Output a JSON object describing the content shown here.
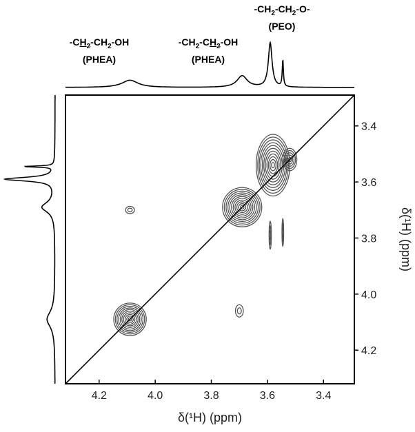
{
  "chart_data": {
    "type": "2d-nmr-contour",
    "xlabel": "δ(¹H)  (ppm)",
    "ylabel": "δ(¹H)  (ppm)",
    "xlim": [
      4.32,
      3.29
    ],
    "ylim": [
      3.29,
      4.32
    ],
    "x_ticks": [
      "4.2",
      "4.0",
      "3.8",
      "3.6",
      "3.4"
    ],
    "y_ticks": [
      "3.4",
      "3.6",
      "3.8",
      "4.0",
      "4.2"
    ],
    "x_tick_values": [
      4.2,
      4.0,
      3.8,
      3.6,
      3.4
    ],
    "y_tick_values": [
      3.4,
      3.6,
      3.8,
      4.0,
      4.2
    ],
    "diagonal": true,
    "projection_peaks": [
      {
        "ppm": 4.09,
        "height": 0.15,
        "width": 0.035
      },
      {
        "ppm": 3.69,
        "height": 0.24,
        "width": 0.022
      },
      {
        "ppm": 3.59,
        "height": 0.92,
        "width": 0.008
      },
      {
        "ppm": 3.545,
        "height": 0.55,
        "width": 0.0025
      }
    ],
    "contour_spots": [
      {
        "x": 4.09,
        "y": 4.09,
        "rx": 0.058,
        "ry": 0.058,
        "levels": 10
      },
      {
        "x": 3.69,
        "y": 3.69,
        "rx": 0.07,
        "ry": 0.07,
        "levels": 11
      },
      {
        "x": 3.58,
        "y": 3.54,
        "rx": 0.06,
        "ry": 0.11,
        "levels": 11
      },
      {
        "x": 3.52,
        "y": 3.52,
        "rx": 0.025,
        "ry": 0.04,
        "levels": 5
      },
      {
        "x": 4.09,
        "y": 3.7,
        "rx": 0.016,
        "ry": 0.013,
        "levels": 2
      },
      {
        "x": 3.7,
        "y": 4.06,
        "rx": 0.014,
        "ry": 0.022,
        "levels": 2
      },
      {
        "x": 3.59,
        "y": 3.79,
        "rx": 0.004,
        "ry": 0.05,
        "levels": 3
      },
      {
        "x": 3.545,
        "y": 3.78,
        "rx": 0.003,
        "ry": 0.05,
        "levels": 3
      }
    ],
    "contour_color": "#555555",
    "line_color": "#000000",
    "annotations": [
      {
        "lines": [
          "-C",
          "H",
          "2",
          "-CH",
          "2",
          "-OH"
        ],
        "sub": "(PHEA)"
      },
      {
        "lines": [
          "-CH",
          "2",
          "-C",
          "H",
          "2",
          "-OH"
        ],
        "sub": "(PHEA)"
      },
      {
        "lines": [
          "-CH",
          "2",
          "-CH",
          "2",
          "-O-"
        ],
        "sub": "(PEO)"
      }
    ]
  },
  "labels": {
    "peak1_a": "-C",
    "peak1_b": "H",
    "peak1_c": "2",
    "peak1_d": "-CH",
    "peak1_e": "2",
    "peak1_f": "-OH",
    "peak1_sub": "(PHEA)",
    "peak2_a": "-CH",
    "peak2_b": "2",
    "peak2_c": "-C",
    "peak2_d": "H",
    "peak2_e": "2",
    "peak2_f": "-OH",
    "peak2_sub": "(PHEA)",
    "peak3_a": "-CH",
    "peak3_b": "2",
    "peak3_c": "-CH",
    "peak3_d": "2",
    "peak3_e": "-O-",
    "peak3_sub": "(PEO)"
  }
}
